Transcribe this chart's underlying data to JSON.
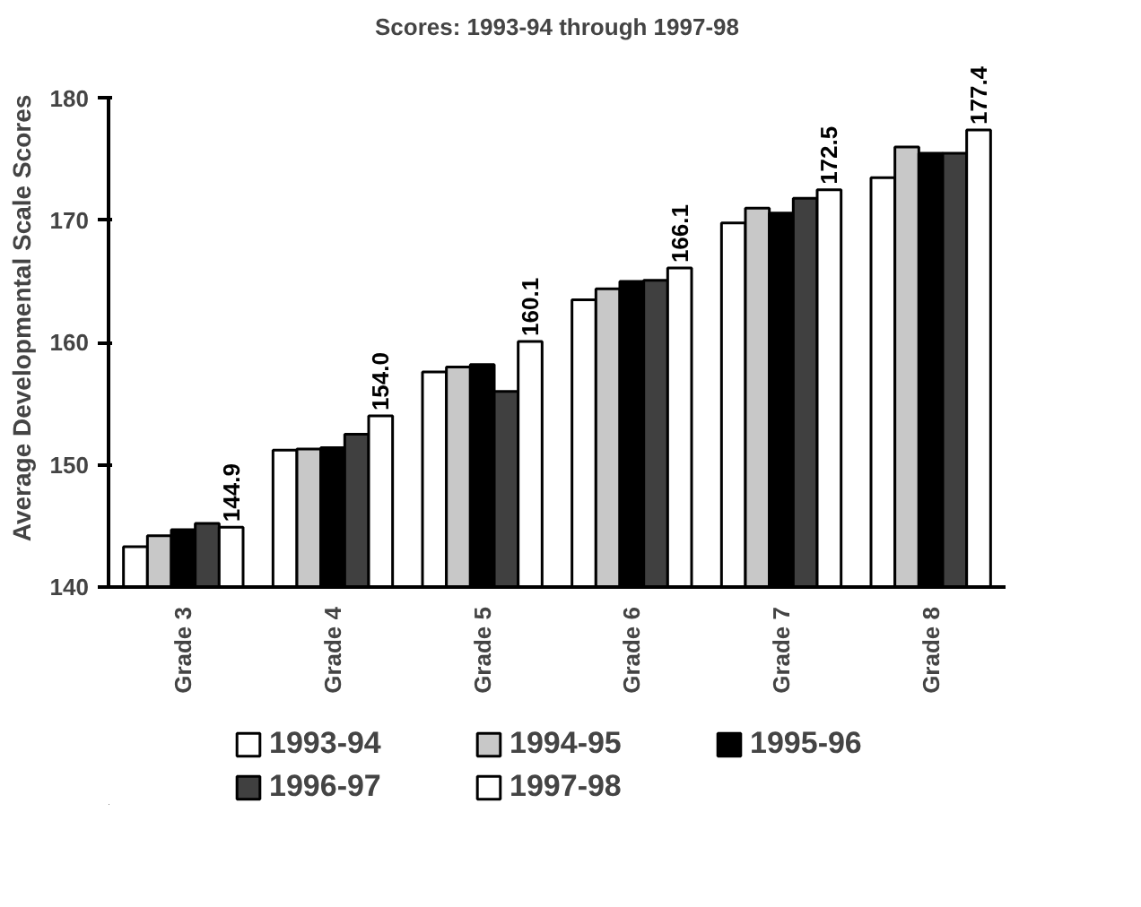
{
  "chart_data": {
    "type": "bar",
    "title": "Scores: 1993-94 through 1997-98",
    "ylabel": "Average Developmental Scale Scores",
    "categories": [
      "Grade 3",
      "Grade 4",
      "Grade 5",
      "Grade 6",
      "Grade 7",
      "Grade 8"
    ],
    "series": [
      {
        "name": "1993-94",
        "color": "#ffffff",
        "values": [
          143.3,
          151.2,
          157.6,
          163.5,
          169.8,
          173.5
        ]
      },
      {
        "name": "1994-95",
        "color": "#c8c8c8",
        "values": [
          144.2,
          151.3,
          158.0,
          164.4,
          171.0,
          176.0
        ]
      },
      {
        "name": "1995-96",
        "color": "#000000",
        "values": [
          144.7,
          151.4,
          158.2,
          165.0,
          170.6,
          175.5
        ]
      },
      {
        "name": "1996-97",
        "color": "#404040",
        "values": [
          145.2,
          152.5,
          156.0,
          165.1,
          171.8,
          175.5
        ]
      },
      {
        "name": "1997-98",
        "color": "#ffffff",
        "values": [
          144.9,
          154.0,
          160.1,
          166.1,
          172.5,
          177.4
        ],
        "value_labels": [
          "144.9",
          "154.0",
          "160.1",
          "166.1",
          "172.5",
          "177.4"
        ]
      }
    ],
    "ylim": [
      140,
      180
    ],
    "yticks": [
      140,
      150,
      160,
      170,
      180
    ],
    "grid": false,
    "legend": "bottom"
  }
}
